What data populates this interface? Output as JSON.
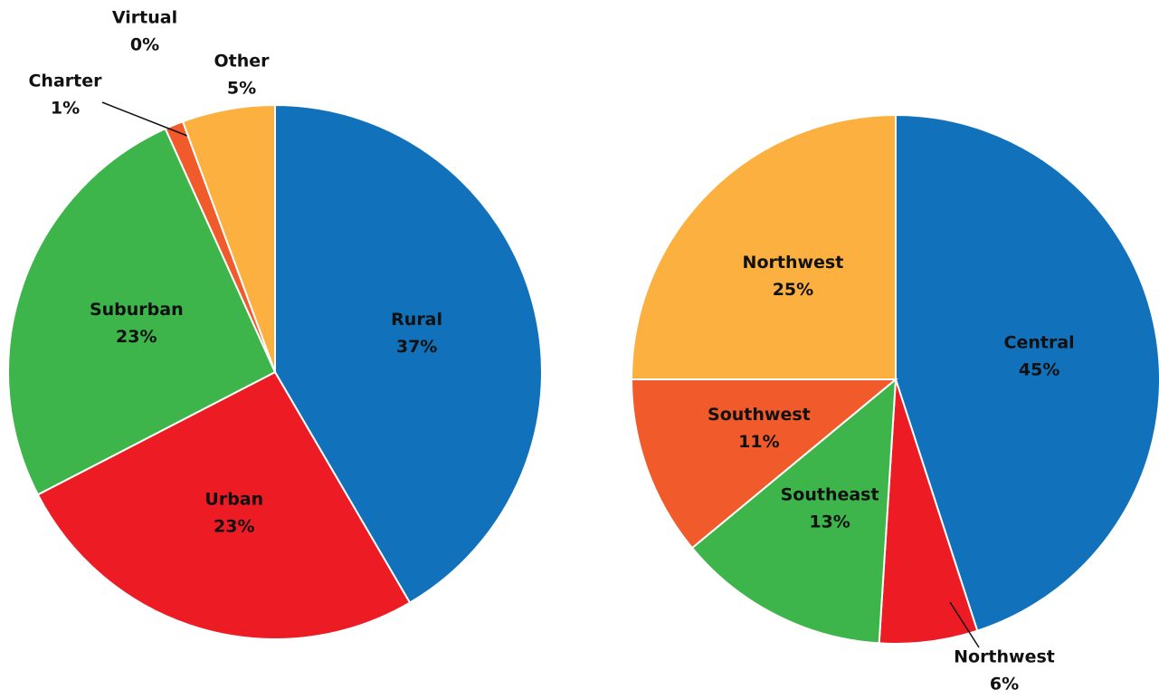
{
  "chart_data": [
    {
      "type": "pie",
      "categories": [
        "Rural",
        "Urban",
        "Suburban",
        "Charter",
        "Virtual",
        "Other"
      ],
      "values": [
        37,
        23,
        23,
        1,
        0,
        5
      ],
      "value_labels": [
        "37%",
        "23%",
        "23%",
        "1%",
        "0%",
        "5%"
      ],
      "colors": [
        "#1172bb",
        "#ed1c24",
        "#3db54a",
        "#f15a2b",
        "#f15a2b",
        "#fbb040"
      ]
    },
    {
      "type": "pie",
      "categories": [
        "Central",
        "Northwest",
        "Southeast",
        "Southwest",
        "Northwest"
      ],
      "values": [
        45,
        6,
        13,
        11,
        25
      ],
      "value_labels": [
        "45%",
        "6%",
        "13%",
        "11%",
        "25%"
      ],
      "colors": [
        "#1172bb",
        "#ed1c24",
        "#3db54a",
        "#f15a2b",
        "#fbb040"
      ]
    }
  ]
}
